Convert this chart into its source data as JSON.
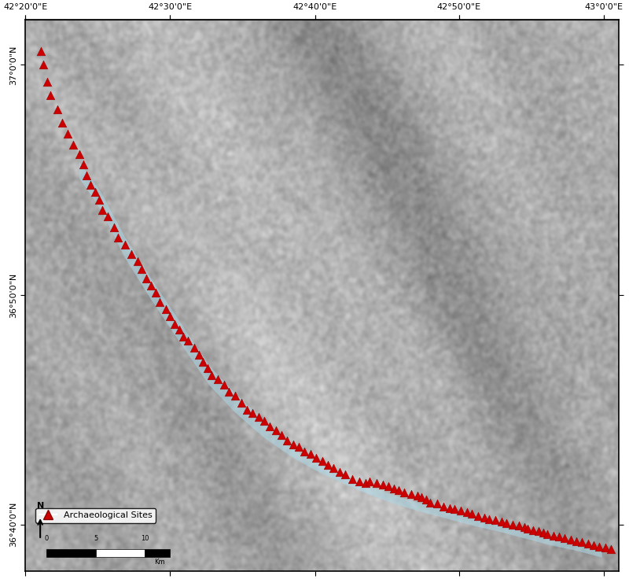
{
  "title": "",
  "xlim": [
    42.333,
    43.017
  ],
  "ylim": [
    36.633,
    37.033
  ],
  "xticks": [
    42.333,
    42.5,
    42.667,
    42.833,
    43.0
  ],
  "yticks": [
    36.667,
    36.833,
    37.0
  ],
  "xtick_labels": [
    "42°20'0\"E",
    "42°30'0\"E",
    "42°40'0\"E",
    "42°50'0\"E",
    "43°0'0\"E"
  ],
  "ytick_labels": [
    "36°40'0\"N",
    "36°50'0\"N",
    "37°0'0\"N"
  ],
  "site_marker": "^",
  "site_color": "#cc0000",
  "site_size": 60,
  "site_label": "Archaeological Sites",
  "reservoir_color": "#add8e6",
  "reservoir_alpha": 0.55,
  "background_color": "#ffffff",
  "border_color": "#000000",
  "legend_loc": "lower left",
  "scalebar_label": "Km",
  "sites_x": [
    42.351,
    42.354,
    42.358,
    42.362,
    42.37,
    42.375,
    42.382,
    42.388,
    42.395,
    42.4,
    42.403,
    42.408,
    42.413,
    42.418,
    42.422,
    42.428,
    42.435,
    42.44,
    42.448,
    42.455,
    42.462,
    42.467,
    42.472,
    42.478,
    42.483,
    42.488,
    42.495,
    42.5,
    42.505,
    42.51,
    42.515,
    42.52,
    42.528,
    42.533,
    42.538,
    42.543,
    42.548,
    42.555,
    42.562,
    42.568,
    42.575,
    42.582,
    42.588,
    42.595,
    42.602,
    42.608,
    42.615,
    42.622,
    42.628,
    42.635,
    42.642,
    42.648,
    42.655,
    42.662,
    42.668,
    42.675,
    42.682,
    42.688,
    42.695,
    42.702,
    42.71,
    42.718,
    42.725,
    42.73,
    42.738,
    42.745,
    42.752,
    42.758,
    42.763,
    42.77,
    42.778,
    42.785,
    42.79,
    42.795,
    42.8,
    42.808,
    42.815,
    42.822,
    42.828,
    42.835,
    42.842,
    42.848,
    42.855,
    42.862,
    42.868,
    42.875,
    42.882,
    42.888,
    42.895,
    42.902,
    42.908,
    42.912,
    42.918,
    42.925,
    42.93,
    42.935,
    42.942,
    42.948,
    42.955,
    42.962,
    42.968,
    42.975,
    42.982,
    42.988,
    42.995,
    43.002,
    43.008
  ],
  "sites_y": [
    37.01,
    37.0,
    36.988,
    36.978,
    36.968,
    36.958,
    36.95,
    36.942,
    36.935,
    36.928,
    36.92,
    36.913,
    36.908,
    36.902,
    36.895,
    36.89,
    36.882,
    36.875,
    36.87,
    36.863,
    36.858,
    36.852,
    36.845,
    36.84,
    36.835,
    36.828,
    36.823,
    36.818,
    36.812,
    36.808,
    36.803,
    36.8,
    36.795,
    36.79,
    36.785,
    36.78,
    36.775,
    36.772,
    36.768,
    36.763,
    36.76,
    36.755,
    36.75,
    36.748,
    36.745,
    36.742,
    36.738,
    36.735,
    36.732,
    36.728,
    36.725,
    36.723,
    36.72,
    36.718,
    36.715,
    36.713,
    36.71,
    36.708,
    36.705,
    36.703,
    36.7,
    36.698,
    36.697,
    36.698,
    36.697,
    36.696,
    36.695,
    36.693,
    36.692,
    36.69,
    36.689,
    36.688,
    36.687,
    36.685,
    36.683,
    36.682,
    36.68,
    36.679,
    36.678,
    36.677,
    36.676,
    36.675,
    36.673,
    36.672,
    36.671,
    36.67,
    36.669,
    36.668,
    36.667,
    36.666,
    36.665,
    36.664,
    36.663,
    36.662,
    36.661,
    36.66,
    36.659,
    36.658,
    36.657,
    36.656,
    36.655,
    36.654,
    36.653,
    36.652,
    36.651,
    36.65,
    36.649
  ],
  "reservoir_polygon_x": [
    42.395,
    42.42,
    42.448,
    42.478,
    42.51,
    42.545,
    42.575,
    42.608,
    42.64,
    42.668,
    42.698,
    42.728,
    42.758,
    42.79,
    42.82,
    42.85,
    42.878,
    42.908,
    42.938,
    42.968,
    42.998,
    42.998,
    42.968,
    42.938,
    42.908,
    42.878,
    42.85,
    42.82,
    42.79,
    42.758,
    42.728,
    42.698,
    42.668,
    42.64,
    42.608,
    42.575,
    42.545,
    42.51,
    42.478,
    42.448,
    42.42,
    42.395
  ],
  "reservoir_polygon_y": [
    36.93,
    36.908,
    36.875,
    36.845,
    36.815,
    36.782,
    36.762,
    36.742,
    36.722,
    36.712,
    36.703,
    36.695,
    36.688,
    36.682,
    36.677,
    36.672,
    36.668,
    36.663,
    36.658,
    36.654,
    36.649,
    36.643,
    36.648,
    36.652,
    36.657,
    36.662,
    36.666,
    36.671,
    36.676,
    36.682,
    36.689,
    36.697,
    36.706,
    36.716,
    36.73,
    36.748,
    36.768,
    36.8,
    36.83,
    36.86,
    36.895,
    36.918
  ]
}
